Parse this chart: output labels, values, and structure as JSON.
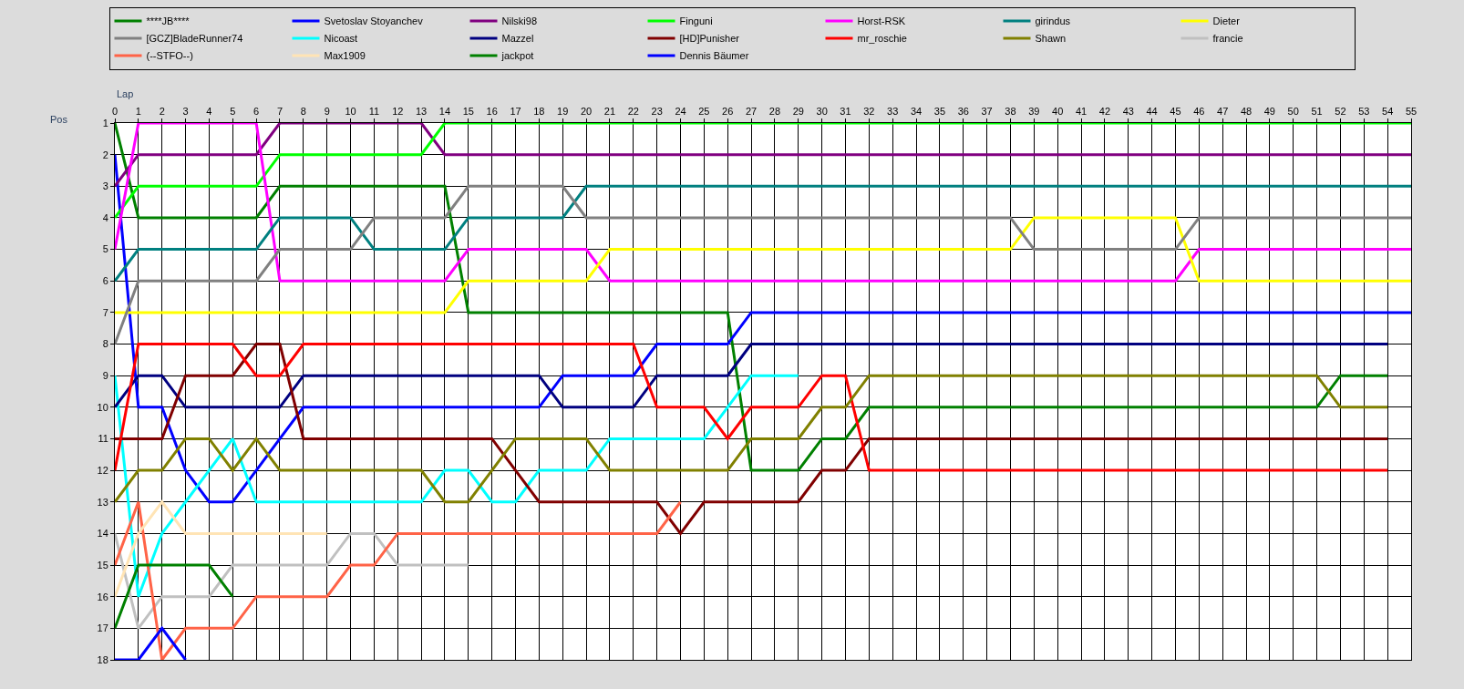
{
  "chart_data": {
    "type": "line",
    "xlabel": "Lap",
    "ylabel": "Pos",
    "x": [
      0,
      1,
      2,
      3,
      4,
      5,
      6,
      7,
      8,
      9,
      10,
      11,
      12,
      13,
      14,
      15,
      16,
      17,
      18,
      19,
      20,
      21,
      22,
      23,
      24,
      25,
      26,
      27,
      28,
      29,
      30,
      31,
      32,
      33,
      34,
      35,
      36,
      37,
      38,
      39,
      40,
      41,
      42,
      43,
      44,
      45,
      46,
      47,
      48,
      49,
      50,
      51,
      52,
      53,
      54,
      55
    ],
    "xlim": [
      0,
      55
    ],
    "xticks": [
      0,
      1,
      2,
      3,
      4,
      5,
      6,
      7,
      8,
      9,
      10,
      11,
      12,
      13,
      14,
      15,
      16,
      17,
      18,
      19,
      20,
      21,
      22,
      23,
      24,
      25,
      26,
      27,
      28,
      29,
      30,
      31,
      32,
      33,
      34,
      35,
      36,
      37,
      38,
      39,
      40,
      41,
      42,
      43,
      44,
      45,
      46,
      47,
      48,
      49,
      50,
      51,
      52,
      53,
      54,
      55
    ],
    "ylim": [
      18,
      1
    ],
    "yticks": [
      1,
      2,
      3,
      4,
      5,
      6,
      7,
      8,
      9,
      10,
      11,
      12,
      13,
      14,
      15,
      16,
      17,
      18
    ],
    "grid": true,
    "legend": "top",
    "marker": "none",
    "line_style": "solid",
    "series": [
      {
        "name": "****JB****",
        "color": "#008000",
        "values": [
          1,
          4,
          4,
          4,
          4,
          4,
          4,
          3,
          3,
          3,
          3,
          3,
          3,
          3,
          3,
          7,
          7,
          7,
          7,
          7,
          7,
          7,
          7,
          7,
          7,
          7,
          7,
          12,
          12,
          12,
          11,
          11,
          10,
          10,
          10,
          10,
          10,
          10,
          10,
          10,
          10,
          10,
          10,
          10,
          10,
          10,
          10,
          10,
          10,
          10,
          10,
          10,
          9,
          9,
          9,
          null
        ]
      },
      {
        "name": "Svetoslav Stoyanchev",
        "color": "#0000ff",
        "values": [
          2,
          10,
          10,
          12,
          13,
          13,
          12,
          11,
          10,
          10,
          10,
          10,
          10,
          10,
          10,
          10,
          10,
          10,
          10,
          9,
          9,
          9,
          9,
          8,
          8,
          8,
          8,
          7,
          7,
          7,
          7,
          7,
          7,
          7,
          7,
          7,
          7,
          7,
          7,
          7,
          7,
          7,
          7,
          7,
          7,
          7,
          7,
          7,
          7,
          7,
          7,
          7,
          7,
          7,
          7,
          7
        ]
      },
      {
        "name": "Nilski98",
        "color": "#800080",
        "values": [
          3,
          2,
          2,
          2,
          2,
          2,
          2,
          1,
          1,
          1,
          1,
          1,
          1,
          1,
          2,
          2,
          2,
          2,
          2,
          2,
          2,
          2,
          2,
          2,
          2,
          2,
          2,
          2,
          2,
          2,
          2,
          2,
          2,
          2,
          2,
          2,
          2,
          2,
          2,
          2,
          2,
          2,
          2,
          2,
          2,
          2,
          2,
          2,
          2,
          2,
          2,
          2,
          2,
          2,
          2,
          2
        ]
      },
      {
        "name": "Finguni",
        "color": "#00ff00",
        "values": [
          4,
          3,
          3,
          3,
          3,
          3,
          3,
          2,
          2,
          2,
          2,
          2,
          2,
          2,
          1,
          1,
          1,
          1,
          1,
          1,
          1,
          1,
          1,
          1,
          1,
          1,
          1,
          1,
          1,
          1,
          1,
          1,
          1,
          1,
          1,
          1,
          1,
          1,
          1,
          1,
          1,
          1,
          1,
          1,
          1,
          1,
          1,
          1,
          1,
          1,
          1,
          1,
          1,
          1,
          1,
          1
        ]
      },
      {
        "name": "Horst-RSK",
        "color": "#ff00ff",
        "values": [
          5,
          1,
          1,
          1,
          1,
          1,
          1,
          6,
          6,
          6,
          6,
          6,
          6,
          6,
          6,
          5,
          5,
          5,
          5,
          5,
          5,
          6,
          6,
          6,
          6,
          6,
          6,
          6,
          6,
          6,
          6,
          6,
          6,
          6,
          6,
          6,
          6,
          6,
          6,
          6,
          6,
          6,
          6,
          6,
          6,
          6,
          5,
          5,
          5,
          5,
          5,
          5,
          5,
          5,
          5,
          5
        ]
      },
      {
        "name": "girindus",
        "color": "#008080",
        "values": [
          6,
          5,
          5,
          5,
          5,
          5,
          5,
          4,
          4,
          4,
          4,
          5,
          5,
          5,
          5,
          4,
          4,
          4,
          4,
          4,
          3,
          3,
          3,
          3,
          3,
          3,
          3,
          3,
          3,
          3,
          3,
          3,
          3,
          3,
          3,
          3,
          3,
          3,
          3,
          3,
          3,
          3,
          3,
          3,
          3,
          3,
          3,
          3,
          3,
          3,
          3,
          3,
          3,
          3,
          3,
          3
        ]
      },
      {
        "name": "Dieter",
        "color": "#ffff00",
        "values": [
          7,
          7,
          7,
          7,
          7,
          7,
          7,
          7,
          7,
          7,
          7,
          7,
          7,
          7,
          7,
          6,
          6,
          6,
          6,
          6,
          6,
          5,
          5,
          5,
          5,
          5,
          5,
          5,
          5,
          5,
          5,
          5,
          5,
          5,
          5,
          5,
          5,
          5,
          5,
          4,
          4,
          4,
          4,
          4,
          4,
          4,
          6,
          6,
          6,
          6,
          6,
          6,
          6,
          6,
          6,
          6
        ]
      },
      {
        "name": "[GCZ]BladeRunner74",
        "color": "#808080",
        "values": [
          8,
          6,
          6,
          6,
          6,
          6,
          6,
          5,
          5,
          5,
          5,
          4,
          4,
          4,
          4,
          3,
          3,
          3,
          3,
          3,
          4,
          4,
          4,
          4,
          4,
          4,
          4,
          4,
          4,
          4,
          4,
          4,
          4,
          4,
          4,
          4,
          4,
          4,
          4,
          5,
          5,
          5,
          5,
          5,
          5,
          5,
          4,
          4,
          4,
          4,
          4,
          4,
          4,
          4,
          4,
          4
        ]
      },
      {
        "name": "Nicoast",
        "color": "#00ffff",
        "values": [
          9,
          16,
          14,
          13,
          12,
          11,
          13,
          13,
          13,
          13,
          13,
          13,
          13,
          13,
          12,
          12,
          13,
          13,
          12,
          12,
          12,
          11,
          11,
          11,
          11,
          11,
          10,
          9,
          9,
          9,
          null,
          null,
          null,
          null,
          null,
          null,
          null,
          null,
          null,
          null,
          null,
          null,
          null,
          null,
          null,
          null,
          null,
          null,
          null,
          null,
          null,
          null,
          null,
          null,
          null,
          null
        ]
      },
      {
        "name": "Mazzel",
        "color": "#000080",
        "values": [
          10,
          9,
          9,
          10,
          10,
          10,
          10,
          10,
          9,
          9,
          9,
          9,
          9,
          9,
          9,
          9,
          9,
          9,
          9,
          10,
          10,
          10,
          10,
          9,
          9,
          9,
          9,
          8,
          8,
          8,
          8,
          8,
          8,
          8,
          8,
          8,
          8,
          8,
          8,
          8,
          8,
          8,
          8,
          8,
          8,
          8,
          8,
          8,
          8,
          8,
          8,
          8,
          8,
          8,
          8,
          null
        ]
      },
      {
        "name": "[HD]Punisher",
        "color": "#800000",
        "values": [
          11,
          11,
          11,
          9,
          9,
          9,
          8,
          8,
          11,
          11,
          11,
          11,
          11,
          11,
          11,
          11,
          11,
          12,
          13,
          13,
          13,
          13,
          13,
          13,
          14,
          13,
          13,
          13,
          13,
          13,
          12,
          12,
          11,
          11,
          11,
          11,
          11,
          11,
          11,
          11,
          11,
          11,
          11,
          11,
          11,
          11,
          11,
          11,
          11,
          11,
          11,
          11,
          11,
          11,
          11,
          null
        ]
      },
      {
        "name": "mr_roschie",
        "color": "#ff0000",
        "values": [
          12,
          8,
          8,
          8,
          8,
          8,
          9,
          9,
          8,
          8,
          8,
          8,
          8,
          8,
          8,
          8,
          8,
          8,
          8,
          8,
          8,
          8,
          8,
          10,
          10,
          10,
          11,
          10,
          10,
          10,
          9,
          9,
          12,
          12,
          12,
          12,
          12,
          12,
          12,
          12,
          12,
          12,
          12,
          12,
          12,
          12,
          12,
          12,
          12,
          12,
          12,
          12,
          12,
          12,
          12,
          null
        ]
      },
      {
        "name": "Shawn",
        "color": "#808000",
        "values": [
          13,
          12,
          12,
          11,
          11,
          12,
          11,
          12,
          12,
          12,
          12,
          12,
          12,
          12,
          13,
          13,
          12,
          11,
          11,
          11,
          11,
          12,
          12,
          12,
          12,
          12,
          12,
          11,
          11,
          11,
          10,
          10,
          9,
          9,
          9,
          9,
          9,
          9,
          9,
          9,
          9,
          9,
          9,
          9,
          9,
          9,
          9,
          9,
          9,
          9,
          9,
          9,
          10,
          10,
          10,
          null
        ]
      },
      {
        "name": "francie",
        "color": "#c0c0c0",
        "values": [
          14,
          17,
          16,
          16,
          16,
          15,
          15,
          15,
          15,
          15,
          14,
          14,
          15,
          15,
          15,
          15,
          null,
          null,
          null,
          null,
          null,
          null,
          null,
          null,
          null,
          null,
          null,
          null,
          null,
          null,
          null,
          null,
          null,
          null,
          null,
          null,
          null,
          null,
          null,
          null,
          null,
          null,
          null,
          null,
          null,
          null,
          null,
          null,
          null,
          null,
          null,
          null,
          null,
          null,
          null,
          null
        ]
      },
      {
        "name": "(--STFO--)",
        "color": "#ff6347",
        "values": [
          15,
          13,
          18,
          17,
          17,
          17,
          16,
          16,
          16,
          16,
          15,
          15,
          14,
          14,
          14,
          14,
          14,
          14,
          14,
          14,
          14,
          14,
          14,
          14,
          13,
          null,
          null,
          null,
          null,
          null,
          null,
          null,
          null,
          null,
          null,
          null,
          null,
          null,
          null,
          null,
          null,
          null,
          null,
          null,
          null,
          null,
          null,
          null,
          null,
          null,
          null,
          null,
          null,
          null,
          null,
          null
        ]
      },
      {
        "name": "Max1909",
        "color": "#ffe4b5",
        "values": [
          16,
          14,
          13,
          14,
          14,
          14,
          14,
          14,
          14,
          14,
          null,
          null,
          null,
          null,
          null,
          null,
          null,
          null,
          null,
          null,
          null,
          null,
          null,
          null,
          null,
          null,
          null,
          null,
          null,
          null,
          null,
          null,
          null,
          null,
          null,
          null,
          null,
          null,
          null,
          null,
          null,
          null,
          null,
          null,
          null,
          null,
          null,
          null,
          null,
          null,
          null,
          null,
          null,
          null,
          null,
          null
        ]
      },
      {
        "name": "jackpot",
        "color": "#008000",
        "values": [
          17,
          15,
          15,
          15,
          15,
          16,
          null,
          null,
          null,
          null,
          null,
          null,
          null,
          null,
          null,
          null,
          null,
          null,
          null,
          null,
          null,
          null,
          null,
          null,
          null,
          null,
          null,
          null,
          null,
          null,
          null,
          null,
          null,
          null,
          null,
          null,
          null,
          null,
          null,
          null,
          null,
          null,
          null,
          null,
          null,
          null,
          null,
          null,
          null,
          null,
          null,
          null,
          null,
          null,
          null,
          null
        ]
      },
      {
        "name": "Dennis Bäumer",
        "color": "#0000ff",
        "values": [
          18,
          18,
          17,
          18,
          null,
          null,
          null,
          null,
          null,
          null,
          null,
          null,
          null,
          null,
          null,
          null,
          null,
          null,
          null,
          null,
          null,
          null,
          null,
          null,
          null,
          null,
          null,
          null,
          null,
          null,
          null,
          null,
          null,
          null,
          null,
          null,
          null,
          null,
          null,
          null,
          null,
          null,
          null,
          null,
          null,
          null,
          null,
          null,
          null,
          null,
          null,
          null,
          null,
          null,
          null,
          null
        ]
      }
    ]
  }
}
